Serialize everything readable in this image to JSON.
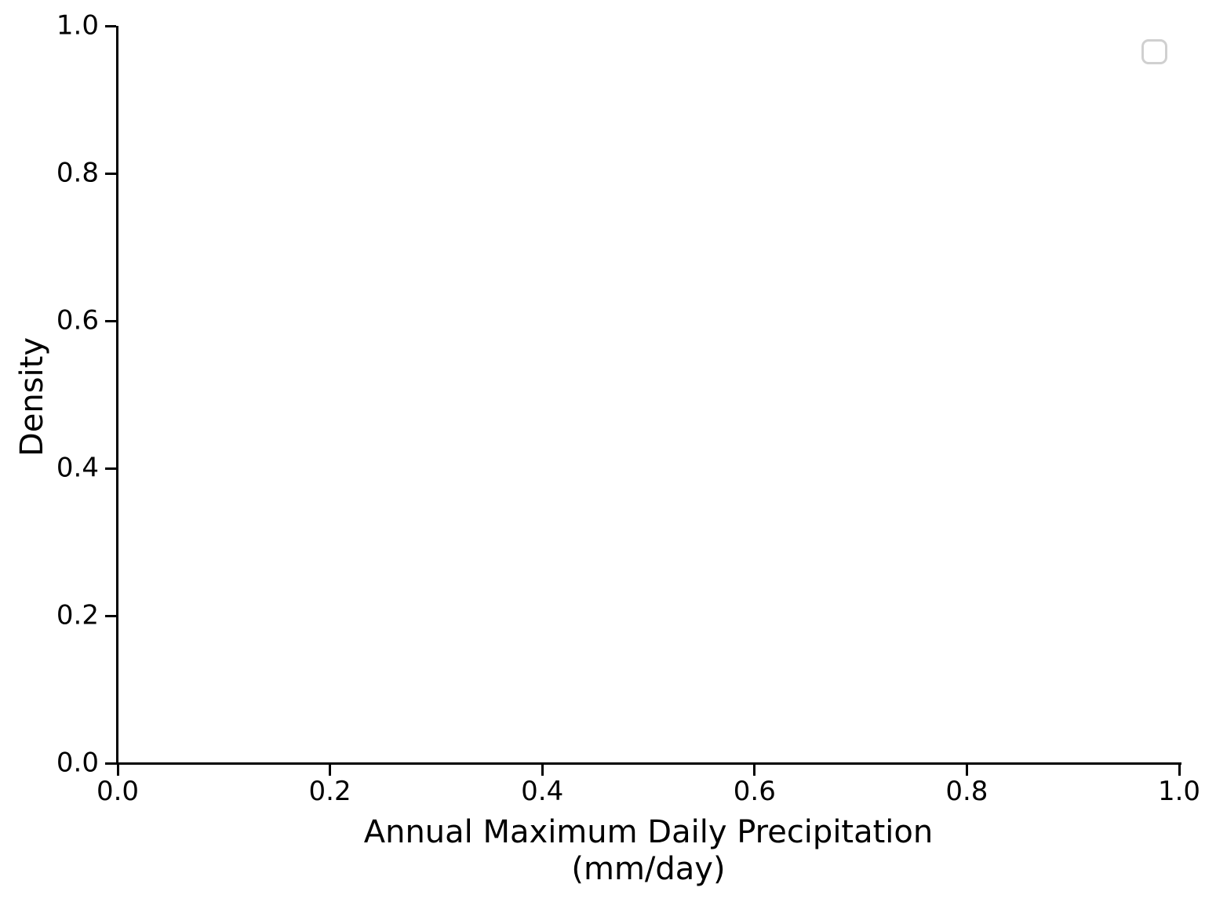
{
  "figure": {
    "background": "#ffffff",
    "axis_color": "#000000",
    "text_color": "#000000",
    "legend_edge_color": "#d0d0d0"
  },
  "chart_data": {
    "type": "line",
    "title": "",
    "xlabel_line1": "Annual Maximum Daily Precipitation",
    "xlabel_line2": "(mm/day)",
    "ylabel": "Density",
    "xlim": [
      0.0,
      1.0
    ],
    "ylim": [
      0.0,
      1.0
    ],
    "x_ticks": [
      "0.0",
      "0.2",
      "0.4",
      "0.6",
      "0.8",
      "1.0"
    ],
    "y_ticks": [
      "0.0",
      "0.2",
      "0.4",
      "0.6",
      "0.8",
      "1.0"
    ],
    "grid": false,
    "series": [],
    "legend": {
      "visible": true,
      "position": "upper right",
      "entries": []
    }
  }
}
